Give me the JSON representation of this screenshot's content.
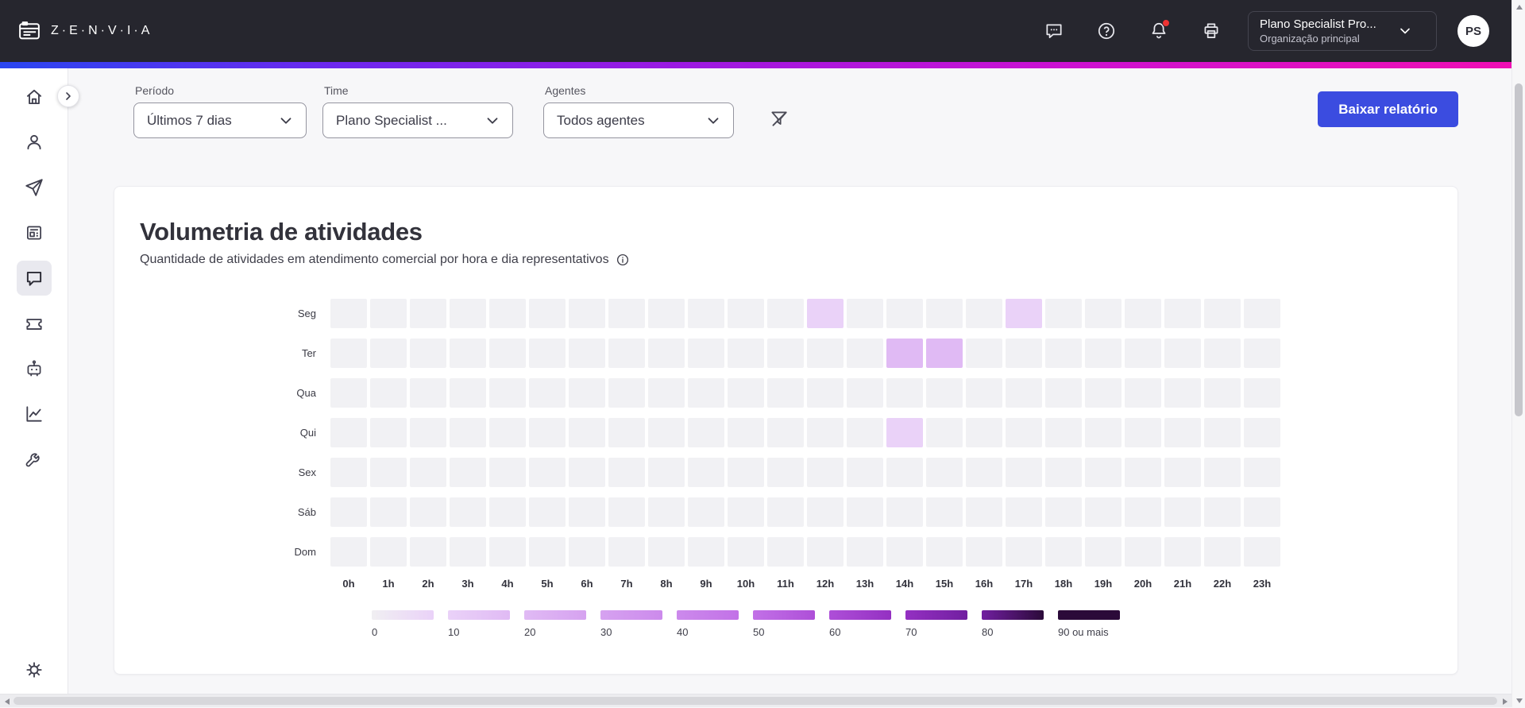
{
  "header": {
    "brand": "Z·E·N·V·I·A",
    "org": {
      "title": "Plano Specialist Pro...",
      "subtitle": "Organização principal"
    },
    "avatar_initials": "PS"
  },
  "sidebar": {
    "items": [
      "home",
      "contacts",
      "send",
      "news",
      "chat",
      "ticket",
      "bot",
      "analytics",
      "tools"
    ],
    "active_item": "chat",
    "bottom_item": "settings"
  },
  "filters": {
    "period_label": "Período",
    "period_value": "Últimos 7 dias",
    "team_label": "Time",
    "team_value": "Plano Specialist ...",
    "agents_label": "Agentes",
    "agents_value": "Todos agentes",
    "download_label": "Baixar relatório"
  },
  "card": {
    "title": "Volumetria de atividades",
    "subtitle": "Quantidade de atividades em atendimento comercial por hora e dia representativos"
  },
  "chart_data": {
    "type": "heatmap",
    "title": "Volumetria de atividades",
    "rows": [
      "Seg",
      "Ter",
      "Qua",
      "Qui",
      "Sex",
      "Sáb",
      "Dom"
    ],
    "columns": [
      "0h",
      "1h",
      "2h",
      "3h",
      "4h",
      "5h",
      "6h",
      "7h",
      "8h",
      "9h",
      "10h",
      "11h",
      "12h",
      "13h",
      "14h",
      "15h",
      "16h",
      "17h",
      "18h",
      "19h",
      "20h",
      "21h",
      "22h",
      "23h"
    ],
    "values": [
      [
        0,
        0,
        0,
        0,
        0,
        0,
        0,
        0,
        0,
        0,
        0,
        0,
        15,
        0,
        0,
        0,
        0,
        12,
        0,
        0,
        0,
        0,
        0,
        0
      ],
      [
        0,
        0,
        0,
        0,
        0,
        0,
        0,
        0,
        0,
        0,
        0,
        0,
        0,
        0,
        25,
        22,
        0,
        0,
        0,
        0,
        0,
        0,
        0,
        0
      ],
      [
        0,
        0,
        0,
        0,
        0,
        0,
        0,
        0,
        0,
        0,
        0,
        0,
        0,
        0,
        0,
        0,
        0,
        0,
        0,
        0,
        0,
        0,
        0,
        0
      ],
      [
        0,
        0,
        0,
        0,
        0,
        0,
        0,
        0,
        0,
        0,
        0,
        0,
        0,
        0,
        12,
        0,
        0,
        0,
        0,
        0,
        0,
        0,
        0,
        0
      ],
      [
        0,
        0,
        0,
        0,
        0,
        0,
        0,
        0,
        0,
        0,
        0,
        0,
        0,
        0,
        0,
        0,
        0,
        0,
        0,
        0,
        0,
        0,
        0,
        0
      ],
      [
        0,
        0,
        0,
        0,
        0,
        0,
        0,
        0,
        0,
        0,
        0,
        0,
        0,
        0,
        0,
        0,
        0,
        0,
        0,
        0,
        0,
        0,
        0,
        0
      ],
      [
        0,
        0,
        0,
        0,
        0,
        0,
        0,
        0,
        0,
        0,
        0,
        0,
        0,
        0,
        0,
        0,
        0,
        0,
        0,
        0,
        0,
        0,
        0,
        0
      ]
    ],
    "empty_cell_color": "#f1f1f4",
    "legend": {
      "labels": [
        "0",
        "10",
        "20",
        "30",
        "40",
        "50",
        "60",
        "70",
        "80",
        "90 ou mais"
      ],
      "colors": [
        "#f0eff2",
        "#ead2f8",
        "#e0baf4",
        "#d6a2f0",
        "#cc8aec",
        "#c271e7",
        "#ae4fd8",
        "#9430c2",
        "#711fa0",
        "#2b0a39"
      ]
    }
  }
}
